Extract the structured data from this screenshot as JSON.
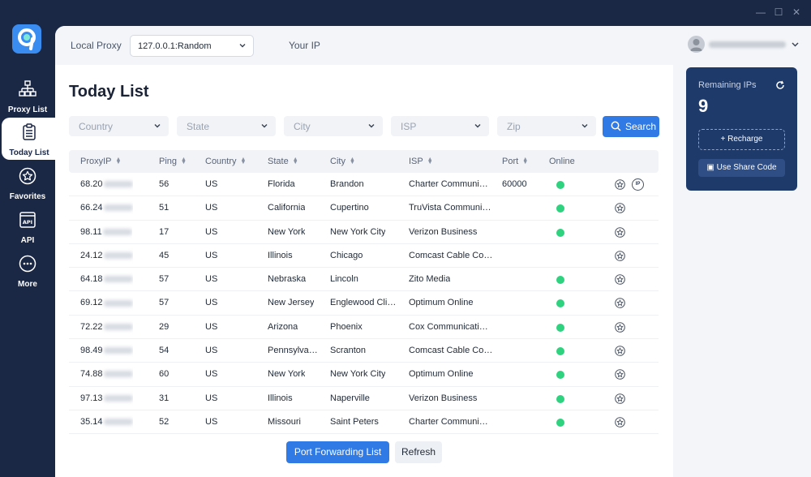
{
  "window": {
    "minimize": "—",
    "maximize": "☐",
    "close": "✕"
  },
  "nav": [
    {
      "label": "Proxy List",
      "icon": "network-icon"
    },
    {
      "label": "Today List",
      "icon": "clipboard-list-icon"
    },
    {
      "label": "Favorites",
      "icon": "star-circle-icon"
    },
    {
      "label": "API",
      "icon": "api-icon"
    },
    {
      "label": "More",
      "icon": "more-circle-icon"
    }
  ],
  "topbar": {
    "local_proxy_label": "Local Proxy",
    "local_proxy_value": "127.0.0.1:Random",
    "your_ip_label": "Your IP"
  },
  "page_title": "Today List",
  "filters": {
    "country": "Country",
    "state": "State",
    "city": "City",
    "isp": "ISP",
    "zip": "Zip",
    "search_label": "Search"
  },
  "table": {
    "headers": [
      "ProxyIP",
      "Ping",
      "Country",
      "State",
      "City",
      "ISP",
      "Port",
      "Online"
    ],
    "rows": [
      {
        "ip": "68.20",
        "ping": "56",
        "country": "US",
        "state": "Florida",
        "city": "Brandon",
        "isp": "Charter Communi…",
        "port": "60000",
        "online": true,
        "ip_badge": "IP"
      },
      {
        "ip": "66.24",
        "ping": "51",
        "country": "US",
        "state": "California",
        "city": "Cupertino",
        "isp": "TruVista Communi…",
        "port": "",
        "online": true
      },
      {
        "ip": "98.11",
        "ping": "17",
        "country": "US",
        "state": "New York",
        "city": "New York City",
        "isp": "Verizon Business",
        "port": "",
        "online": true
      },
      {
        "ip": "24.12",
        "ping": "45",
        "country": "US",
        "state": "Illinois",
        "city": "Chicago",
        "isp": "Comcast Cable Co…",
        "port": "",
        "online": false
      },
      {
        "ip": "64.18",
        "ping": "57",
        "country": "US",
        "state": "Nebraska",
        "city": "Lincoln",
        "isp": "Zito Media",
        "port": "",
        "online": true
      },
      {
        "ip": "69.12",
        "ping": "57",
        "country": "US",
        "state": "New Jersey",
        "city": "Englewood Cli…",
        "isp": "Optimum Online",
        "port": "",
        "online": true
      },
      {
        "ip": "72.22",
        "ping": "29",
        "country": "US",
        "state": "Arizona",
        "city": "Phoenix",
        "isp": "Cox Communicati…",
        "port": "",
        "online": true
      },
      {
        "ip": "98.49",
        "ping": "54",
        "country": "US",
        "state": "Pennsylva…",
        "city": "Scranton",
        "isp": "Comcast Cable Co…",
        "port": "",
        "online": true
      },
      {
        "ip": "74.88",
        "ping": "60",
        "country": "US",
        "state": "New York",
        "city": "New York City",
        "isp": "Optimum Online",
        "port": "",
        "online": true
      },
      {
        "ip": "97.13",
        "ping": "31",
        "country": "US",
        "state": "Illinois",
        "city": "Naperville",
        "isp": "Verizon Business",
        "port": "",
        "online": true
      },
      {
        "ip": "35.14",
        "ping": "52",
        "country": "US",
        "state": "Missouri",
        "city": "Saint Peters",
        "isp": "Charter Communi…",
        "port": "",
        "online": true
      }
    ]
  },
  "buttons": {
    "port_forwarding": "Port Forwarding List",
    "refresh": "Refresh"
  },
  "card": {
    "remaining_label": "Remaining IPs",
    "remaining_count": "9",
    "recharge_label": "+ Recharge",
    "share_label": "Use Share Code"
  },
  "colors": {
    "sidebar": "#1a2745",
    "accent": "#2f7ae5",
    "online": "#2fd27f",
    "card": "#1d3a6b"
  }
}
